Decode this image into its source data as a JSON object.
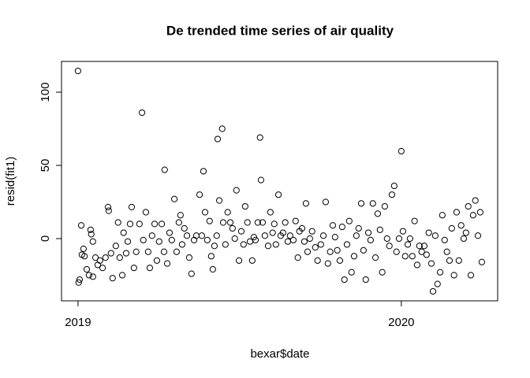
{
  "chart_data": {
    "type": "scatter",
    "title": "De trended time series of air quality",
    "xlabel": "bexar$date",
    "ylabel": "resid(fit1)",
    "xlim": [
      2018.949,
      2020.298
    ],
    "xticks": [
      2019,
      2020
    ],
    "ylim": [
      -42.5,
      121
    ],
    "yticks": [
      0,
      50,
      100
    ],
    "color": "#000000",
    "x": [
      2019.0,
      2019.002,
      2019.005,
      2019.01,
      2019.012,
      2019.017,
      2019.02,
      2019.027,
      2019.034,
      2019.039,
      2019.041,
      2019.046,
      2019.046,
      2019.054,
      2019.061,
      2019.068,
      2019.076,
      2019.085,
      2019.093,
      2019.095,
      2019.102,
      2019.107,
      2019.117,
      2019.124,
      2019.129,
      2019.137,
      2019.141,
      2019.149,
      2019.154,
      2019.161,
      2019.166,
      2019.173,
      2019.18,
      2019.19,
      2019.198,
      2019.202,
      2019.21,
      2019.217,
      2019.222,
      2019.229,
      2019.237,
      2019.244,
      2019.251,
      2019.259,
      2019.266,
      2019.268,
      2019.276,
      2019.283,
      2019.29,
      2019.298,
      2019.305,
      2019.312,
      2019.317,
      2019.322,
      2019.329,
      2019.337,
      2019.344,
      2019.351,
      2019.359,
      2019.366,
      2019.376,
      2019.383,
      2019.388,
      2019.393,
      2019.4,
      2019.407,
      2019.412,
      2019.417,
      2019.422,
      2019.429,
      2019.432,
      2019.437,
      2019.446,
      2019.449,
      2019.456,
      2019.463,
      2019.471,
      2019.478,
      2019.485,
      2019.49,
      2019.498,
      2019.505,
      2019.512,
      2019.517,
      2019.524,
      2019.532,
      2019.539,
      2019.544,
      2019.549,
      2019.556,
      2019.563,
      2019.566,
      2019.571,
      2019.578,
      2019.588,
      2019.595,
      2019.602,
      2019.607,
      2019.612,
      2019.62,
      2019.627,
      2019.634,
      2019.641,
      2019.649,
      2019.656,
      2019.666,
      2019.673,
      2019.68,
      2019.685,
      2019.693,
      2019.7,
      2019.705,
      2019.71,
      2019.717,
      2019.724,
      2019.734,
      2019.741,
      2019.751,
      2019.759,
      2019.766,
      2019.773,
      2019.78,
      2019.788,
      2019.795,
      2019.802,
      2019.81,
      2019.817,
      2019.824,
      2019.832,
      2019.839,
      2019.846,
      2019.854,
      2019.861,
      2019.868,
      2019.876,
      2019.883,
      2019.89,
      2019.898,
      2019.905,
      2019.912,
      2019.92,
      2019.927,
      2019.934,
      2019.941,
      2019.949,
      2019.956,
      2019.963,
      2019.971,
      2019.978,
      2019.985,
      2019.993,
      2020.0,
      2020.005,
      2020.012,
      2020.02,
      2020.027,
      2020.034,
      2020.041,
      2020.049,
      2020.056,
      2020.063,
      2020.071,
      2020.078,
      2020.085,
      2020.093,
      2020.098,
      2020.105,
      2020.112,
      2020.12,
      2020.127,
      2020.134,
      2020.141,
      2020.149,
      2020.156,
      2020.163,
      2020.171,
      2020.178,
      2020.185,
      2020.193,
      2020.2,
      2020.207,
      2020.215,
      2020.222,
      2020.229,
      2020.237,
      2020.244,
      2020.249
    ],
    "values": [
      114.5,
      -30,
      -28,
      9,
      -11,
      -7,
      -12,
      -21,
      -25,
      6,
      3,
      -2,
      -26,
      -13,
      -18,
      -15,
      -20,
      -13,
      21.5,
      19,
      -10,
      -27,
      -5,
      11,
      -13,
      -25,
      4,
      -10,
      -2,
      10,
      21.5,
      -20,
      -9,
      10,
      86,
      -1,
      18,
      -9,
      -20,
      2,
      10,
      -15,
      -2,
      10,
      -9,
      47,
      -17,
      4,
      -1,
      27,
      -9,
      11,
      16,
      -4,
      7,
      2,
      -13,
      -24,
      -1,
      2,
      30,
      2,
      46,
      18,
      -1,
      12,
      -12,
      -21,
      -5,
      2,
      68,
      26,
      75,
      11,
      -4,
      18,
      11,
      7,
      0,
      33,
      -15,
      5,
      -4,
      22,
      11,
      -2,
      -15,
      1,
      -1,
      11,
      69,
      40,
      11,
      2,
      -5,
      18,
      4,
      10,
      -4,
      30,
      2,
      4,
      11,
      -2,
      2,
      -1,
      12,
      -13,
      5,
      7,
      -2,
      24,
      -9,
      0,
      5,
      -6,
      -15,
      -4,
      2,
      25,
      -17,
      -9,
      9,
      1,
      -8,
      -15,
      8,
      -28,
      -4,
      12,
      -23,
      -12,
      2,
      7,
      24,
      -8,
      -28,
      4,
      -1,
      24,
      -13,
      17,
      6,
      -23,
      22,
      0,
      -5,
      30,
      36,
      -9,
      0,
      59.7,
      5,
      -12,
      -4,
      0,
      -12,
      12,
      -18,
      -5,
      -9,
      -5,
      -11,
      4,
      -17,
      -36,
      2,
      -31,
      -23,
      16,
      -1,
      -9,
      -15,
      7,
      -25,
      18,
      -15,
      9,
      0,
      4,
      22,
      -25,
      16,
      26,
      2,
      18,
      -16
    ]
  }
}
